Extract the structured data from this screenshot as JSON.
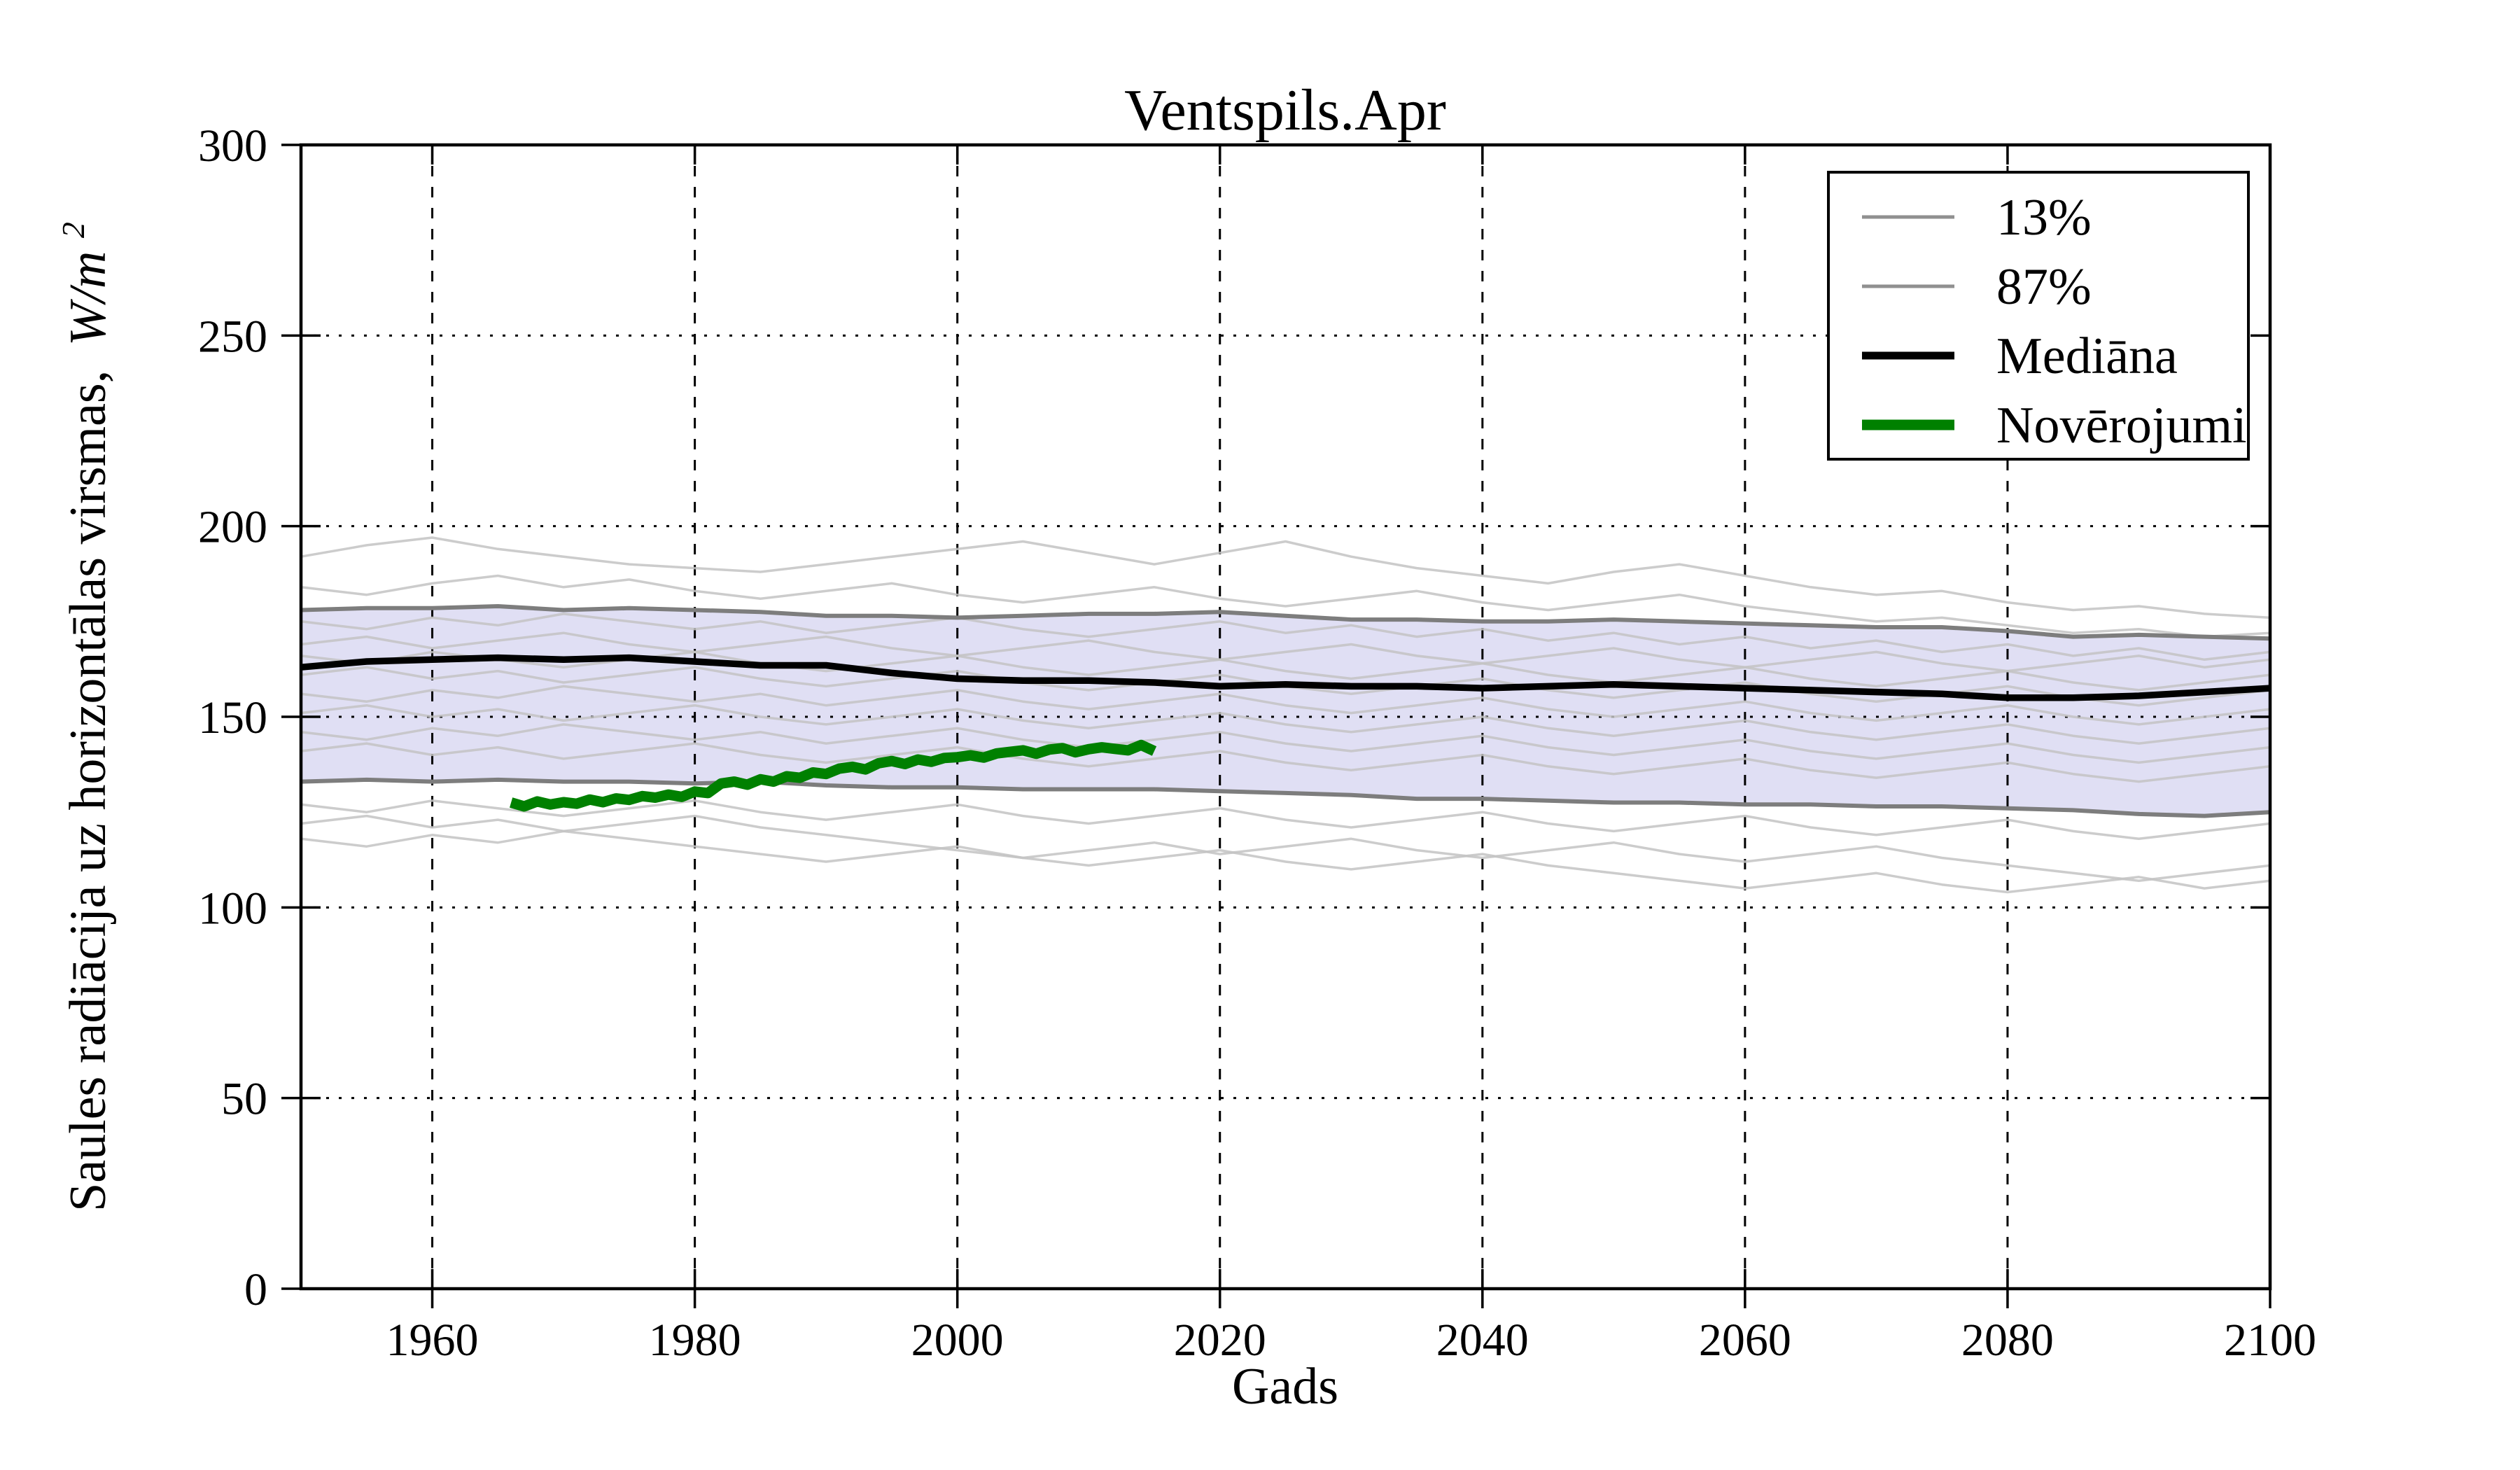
{
  "figure": {
    "title": "Ventspils.Apr",
    "xlabel": "Gads",
    "ylabel_prefix": "Saules radiācija uz horizontālas virsmas,",
    "ylabel_math": "W/m",
    "ylabel_sup": "2"
  },
  "legend": {
    "position": "upper right",
    "items": [
      {
        "label": "13%",
        "color": "#909090"
      },
      {
        "label": "87%",
        "color": "#909090"
      },
      {
        "label": "Mediāna",
        "color": "#000000"
      },
      {
        "label": "Novērojumi",
        "color": "#008000"
      }
    ]
  },
  "chart_data": {
    "type": "line",
    "title": "Ventspils.Apr",
    "xlabel": "Gads",
    "ylabel": "Saules radiācija uz horizontālas virsmas, W/m^2",
    "xlim": [
      1950,
      2100
    ],
    "ylim": [
      0,
      300
    ],
    "x_ticks": [
      1960,
      1980,
      2000,
      2020,
      2040,
      2060,
      2080,
      2100
    ],
    "y_ticks": [
      0,
      50,
      100,
      150,
      200,
      250,
      300
    ],
    "grid": {
      "horizontal": "dotted",
      "vertical": "dashed",
      "color": "#000000"
    },
    "colors": {
      "band_fill": "#e0dff4",
      "band_edge": "#7d7d7d",
      "ensemble": "#c3c3c3",
      "median": "#000000",
      "observations": "#008000",
      "frame": "#000000"
    },
    "years": [
      1950,
      1955,
      1960,
      1965,
      1970,
      1975,
      1980,
      1985,
      1990,
      1995,
      2000,
      2005,
      2010,
      2015,
      2020,
      2025,
      2030,
      2035,
      2040,
      2045,
      2050,
      2055,
      2060,
      2065,
      2070,
      2075,
      2080,
      2085,
      2090,
      2095,
      2100
    ],
    "band": {
      "upper_label": "87%",
      "lower_label": "13%",
      "upper": [
        178,
        178.5,
        178.5,
        179,
        178,
        178.5,
        178,
        177.5,
        176.5,
        176.5,
        176,
        176.5,
        177,
        177,
        177.5,
        176.5,
        175.5,
        175.5,
        175,
        175,
        175.5,
        175,
        174.5,
        174,
        173.5,
        173.5,
        172.5,
        171,
        171.5,
        171,
        170.5
      ],
      "lower": [
        133,
        133.5,
        133,
        133.5,
        133,
        133,
        132.5,
        133,
        132,
        131.5,
        131.5,
        131,
        131,
        131,
        130.5,
        130,
        129.5,
        128.5,
        128.5,
        128,
        127.5,
        127.5,
        127,
        127,
        126.5,
        126.5,
        126,
        125.5,
        124.5,
        124,
        125
      ]
    },
    "median": {
      "label": "Mediāna",
      "values": [
        163,
        164.5,
        165,
        165.5,
        165,
        165.5,
        164.5,
        163.5,
        163.5,
        161.5,
        160,
        159.5,
        159.5,
        159,
        158,
        158.5,
        158,
        158,
        157.5,
        158,
        158.5,
        158,
        157.5,
        157,
        156.5,
        156,
        155,
        155,
        155.5,
        156.5,
        157.5
      ]
    },
    "observations": {
      "label": "Novērojumi",
      "years": [
        1966,
        1967,
        1968,
        1969,
        1970,
        1971,
        1972,
        1973,
        1974,
        1975,
        1976,
        1977,
        1978,
        1979,
        1980,
        1981,
        1982,
        1983,
        1984,
        1985,
        1986,
        1987,
        1988,
        1989,
        1990,
        1991,
        1992,
        1993,
        1994,
        1995,
        1996,
        1997,
        1998,
        1999,
        2000,
        2001,
        2002,
        2003,
        2004,
        2005,
        2006,
        2007,
        2008,
        2009,
        2010,
        2011,
        2012,
        2013,
        2014,
        2015
      ],
      "values": [
        127.5,
        126.5,
        127.8,
        127.0,
        127.6,
        127.2,
        128.3,
        127.6,
        128.6,
        128.2,
        129.2,
        128.8,
        129.6,
        129.0,
        130.4,
        130.0,
        132.5,
        133.0,
        132.2,
        133.6,
        133.0,
        134.4,
        134.0,
        135.4,
        135.0,
        136.4,
        136.9,
        136.2,
        137.8,
        138.4,
        137.6,
        138.8,
        138.2,
        139.2,
        139.4,
        139.9,
        139.3,
        140.4,
        140.8,
        141.2,
        140.3,
        141.4,
        141.8,
        140.7,
        141.5,
        142.0,
        141.6,
        141.2,
        142.6,
        141.0
      ]
    },
    "ensemble": {
      "description": "individual climate model runs",
      "members": [
        [
          192,
          195,
          197,
          194,
          192,
          190,
          189,
          188,
          190,
          192,
          194,
          196,
          193,
          190,
          193,
          196,
          192,
          189,
          187,
          185,
          188,
          190,
          187,
          184,
          182,
          183,
          180,
          178,
          179,
          177,
          176
        ],
        [
          184,
          182,
          185,
          187,
          184,
          186,
          183,
          181,
          183,
          185,
          182,
          180,
          182,
          184,
          181,
          179,
          181,
          183,
          180,
          178,
          180,
          182,
          179,
          177,
          175,
          176,
          174,
          172,
          173,
          171,
          172
        ],
        [
          175,
          173,
          176,
          174,
          177,
          175,
          173,
          175,
          172,
          174,
          176,
          173,
          171,
          173,
          175,
          172,
          174,
          171,
          173,
          170,
          172,
          169,
          171,
          168,
          170,
          167,
          169,
          166,
          168,
          165,
          167
        ],
        [
          169,
          171,
          168,
          170,
          172,
          169,
          167,
          169,
          171,
          168,
          166,
          168,
          170,
          167,
          165,
          167,
          169,
          166,
          164,
          166,
          168,
          165,
          163,
          165,
          167,
          164,
          162,
          164,
          166,
          163,
          165
        ],
        [
          166,
          164,
          167,
          165,
          163,
          165,
          167,
          164,
          162,
          164,
          166,
          163,
          161,
          163,
          165,
          162,
          160,
          162,
          164,
          161,
          159,
          161,
          163,
          160,
          158,
          160,
          162,
          159,
          157,
          159,
          161
        ],
        [
          161,
          163,
          160,
          162,
          159,
          161,
          163,
          160,
          158,
          160,
          162,
          159,
          157,
          159,
          161,
          158,
          156,
          158,
          160,
          157,
          155,
          157,
          159,
          156,
          154,
          156,
          158,
          155,
          153,
          155,
          157
        ],
        [
          156,
          154,
          157,
          155,
          158,
          156,
          154,
          156,
          153,
          155,
          157,
          154,
          152,
          154,
          156,
          153,
          151,
          153,
          155,
          152,
          150,
          152,
          154,
          151,
          149,
          151,
          153,
          150,
          148,
          150,
          152
        ],
        [
          151,
          153,
          150,
          152,
          149,
          151,
          153,
          150,
          148,
          150,
          152,
          149,
          147,
          149,
          151,
          148,
          146,
          148,
          150,
          147,
          145,
          147,
          149,
          146,
          144,
          146,
          148,
          145,
          143,
          145,
          147
        ],
        [
          146,
          144,
          147,
          145,
          148,
          146,
          144,
          146,
          143,
          145,
          147,
          144,
          142,
          144,
          146,
          143,
          141,
          143,
          145,
          142,
          140,
          142,
          144,
          141,
          139,
          141,
          143,
          140,
          138,
          140,
          142
        ],
        [
          141,
          143,
          140,
          142,
          139,
          141,
          143,
          140,
          138,
          140,
          142,
          139,
          137,
          139,
          141,
          138,
          136,
          138,
          140,
          137,
          135,
          137,
          139,
          136,
          134,
          136,
          138,
          135,
          133,
          135,
          137
        ],
        [
          127,
          125,
          128,
          126,
          124,
          126,
          128,
          125,
          123,
          125,
          127,
          124,
          122,
          124,
          126,
          123,
          121,
          123,
          125,
          122,
          120,
          122,
          124,
          121,
          119,
          121,
          123,
          120,
          118,
          120,
          122
        ],
        [
          122,
          124,
          121,
          123,
          120,
          122,
          124,
          121,
          119,
          117,
          115,
          113,
          115,
          117,
          114,
          116,
          118,
          115,
          113,
          115,
          117,
          114,
          112,
          114,
          116,
          113,
          111,
          109,
          107,
          109,
          111
        ],
        [
          118,
          116,
          119,
          117,
          120,
          118,
          116,
          114,
          112,
          114,
          116,
          113,
          111,
          113,
          115,
          112,
          110,
          112,
          114,
          111,
          109,
          107,
          105,
          107,
          109,
          106,
          104,
          106,
          108,
          105,
          107
        ]
      ]
    }
  }
}
